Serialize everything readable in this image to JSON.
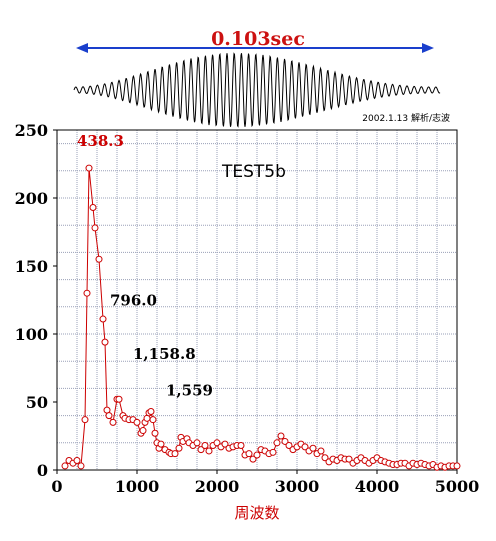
{
  "header": {
    "duration_label": "0.103sec",
    "stamp": "2002.1.13 解析/志波"
  },
  "chart_data": {
    "type": "line",
    "title": "TEST5b",
    "xlabel": "周波数",
    "ylabel": "",
    "xlim": [
      0,
      5000
    ],
    "ylim": [
      0,
      250
    ],
    "x_ticks": [
      0,
      1000,
      2000,
      3000,
      4000,
      5000
    ],
    "y_ticks": [
      0,
      50,
      100,
      150,
      200,
      250
    ],
    "x_tick_labels": [
      "0",
      "1000",
      "2000",
      "3000",
      "4000",
      "5000"
    ],
    "y_tick_labels": [
      "0",
      "50",
      "100",
      "150",
      "200",
      "250"
    ],
    "grid": true,
    "series": [
      {
        "color": "#cc0000",
        "marker": "open-circle",
        "x": [
          100,
          150,
          200,
          250,
          300,
          350,
          375,
          400,
          450,
          475,
          525,
          575,
          600,
          625,
          650,
          700,
          750,
          775,
          825,
          850,
          900,
          950,
          1000,
          1050,
          1075,
          1100,
          1125,
          1150,
          1175,
          1200,
          1225,
          1250,
          1275,
          1300,
          1350,
          1400,
          1425,
          1475,
          1525,
          1550,
          1575,
          1625,
          1650,
          1700,
          1750,
          1800,
          1850,
          1900,
          1950,
          2000,
          2050,
          2100,
          2150,
          2200,
          2250,
          2300,
          2350,
          2400,
          2450,
          2500,
          2550,
          2600,
          2650,
          2700,
          2750,
          2800,
          2850,
          2900,
          2950,
          3000,
          3050,
          3100,
          3150,
          3200,
          3250,
          3300,
          3350,
          3400,
          3450,
          3500,
          3550,
          3600,
          3650,
          3700,
          3750,
          3800,
          3850,
          3900,
          3950,
          4000,
          4050,
          4100,
          4150,
          4200,
          4250,
          4300,
          4350,
          4400,
          4450,
          4500,
          4550,
          4600,
          4650,
          4700,
          4750,
          4800,
          4850,
          4900,
          4950,
          5000
        ],
        "y": [
          3,
          7,
          5,
          7,
          3,
          37,
          130,
          222,
          193,
          178,
          155,
          111,
          94,
          44,
          40,
          35,
          52,
          52,
          40,
          38,
          37,
          37,
          35,
          27,
          29,
          35,
          38,
          42,
          43,
          37,
          27,
          20,
          16,
          19,
          15,
          13,
          12,
          12,
          16,
          24,
          21,
          23,
          20,
          18,
          20,
          15,
          18,
          14,
          18,
          20,
          17,
          19,
          16,
          17,
          18,
          18,
          11,
          12,
          8,
          11,
          15,
          14,
          12,
          13,
          20,
          25,
          21,
          18,
          15,
          17,
          19,
          17,
          14,
          16,
          12,
          14,
          9,
          6,
          8,
          7,
          9,
          8,
          8,
          5,
          7,
          9,
          7,
          5,
          7,
          9,
          7,
          6,
          5,
          4,
          4,
          5,
          5,
          3,
          5,
          4,
          5,
          4,
          3,
          4,
          2,
          3,
          2,
          3,
          3,
          3
        ]
      }
    ],
    "annotations": [
      {
        "text": "438.3",
        "x": 400,
        "y": 222,
        "color": "#cc0000"
      },
      {
        "text": "796.0",
        "x": 625,
        "y": 115,
        "color": "#000000"
      },
      {
        "text": "1,158.8",
        "x": 1125,
        "y": 67,
        "color": "#000000"
      },
      {
        "text": "1,559",
        "x": 1550,
        "y": 40,
        "color": "#000000"
      }
    ]
  }
}
